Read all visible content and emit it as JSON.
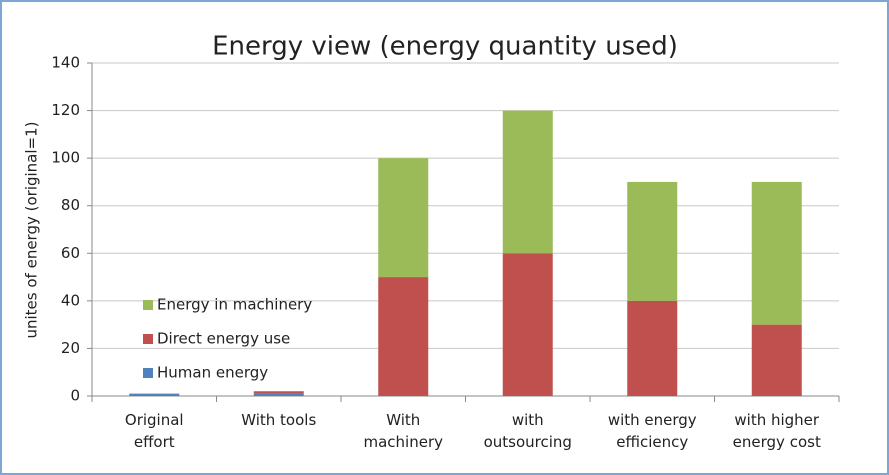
{
  "chart_data": {
    "type": "bar",
    "stacked": true,
    "title": "Energy view (energy quantity used)",
    "y_label": "unites of energy (original=1)",
    "categories": [
      [
        "Original",
        "effort"
      ],
      [
        "With tools"
      ],
      [
        "With",
        "machinery"
      ],
      [
        "with",
        "outsourcing"
      ],
      [
        "with energy",
        "efficiency"
      ],
      [
        "with higher",
        "energy cost"
      ]
    ],
    "series": [
      {
        "name": "Human energy",
        "color": "#4f81bd",
        "values": [
          1,
          1,
          0,
          0,
          0,
          0
        ]
      },
      {
        "name": "Direct energy use",
        "color": "#c0504d",
        "values": [
          0,
          1,
          50,
          60,
          40,
          30
        ]
      },
      {
        "name": "Energy in machinery",
        "color": "#9bbb59",
        "values": [
          0,
          0,
          50,
          60,
          50,
          60
        ]
      }
    ],
    "ylim": [
      0,
      140
    ],
    "yticks": [
      0,
      20,
      40,
      60,
      80,
      100,
      120,
      140
    ],
    "grid": true
  }
}
